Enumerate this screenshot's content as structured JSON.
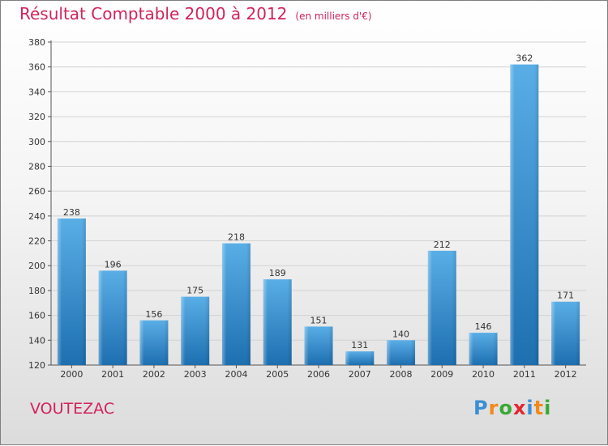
{
  "chart_data": {
    "type": "bar",
    "title": "Résultat Comptable 2000 à 2012",
    "subtitle": "(en milliers d'€)",
    "xlabel": "",
    "ylabel": "",
    "categories": [
      "2000",
      "2001",
      "2002",
      "2003",
      "2004",
      "2005",
      "2006",
      "2007",
      "2008",
      "2009",
      "2010",
      "2011",
      "2012"
    ],
    "values": [
      238,
      196,
      156,
      175,
      218,
      189,
      151,
      131,
      140,
      212,
      146,
      362,
      171
    ],
    "ylim": [
      120,
      380
    ],
    "yticks": [
      120,
      140,
      160,
      180,
      200,
      220,
      240,
      260,
      280,
      300,
      320,
      340,
      360,
      380
    ],
    "grid": true
  },
  "place_name": "VOUTEZAC",
  "brand": {
    "letters": [
      "P",
      "r",
      "o",
      "x",
      "i",
      "t",
      "i"
    ],
    "colors": [
      "#3a8fd6",
      "#f08a1c",
      "#39a935",
      "#e3262f",
      "#3a8fd6",
      "#f08a1c",
      "#39a935"
    ]
  },
  "colors": {
    "title": "#d2235c",
    "bar_top": "#5aaee6",
    "bar_bottom": "#1d6fb0"
  }
}
